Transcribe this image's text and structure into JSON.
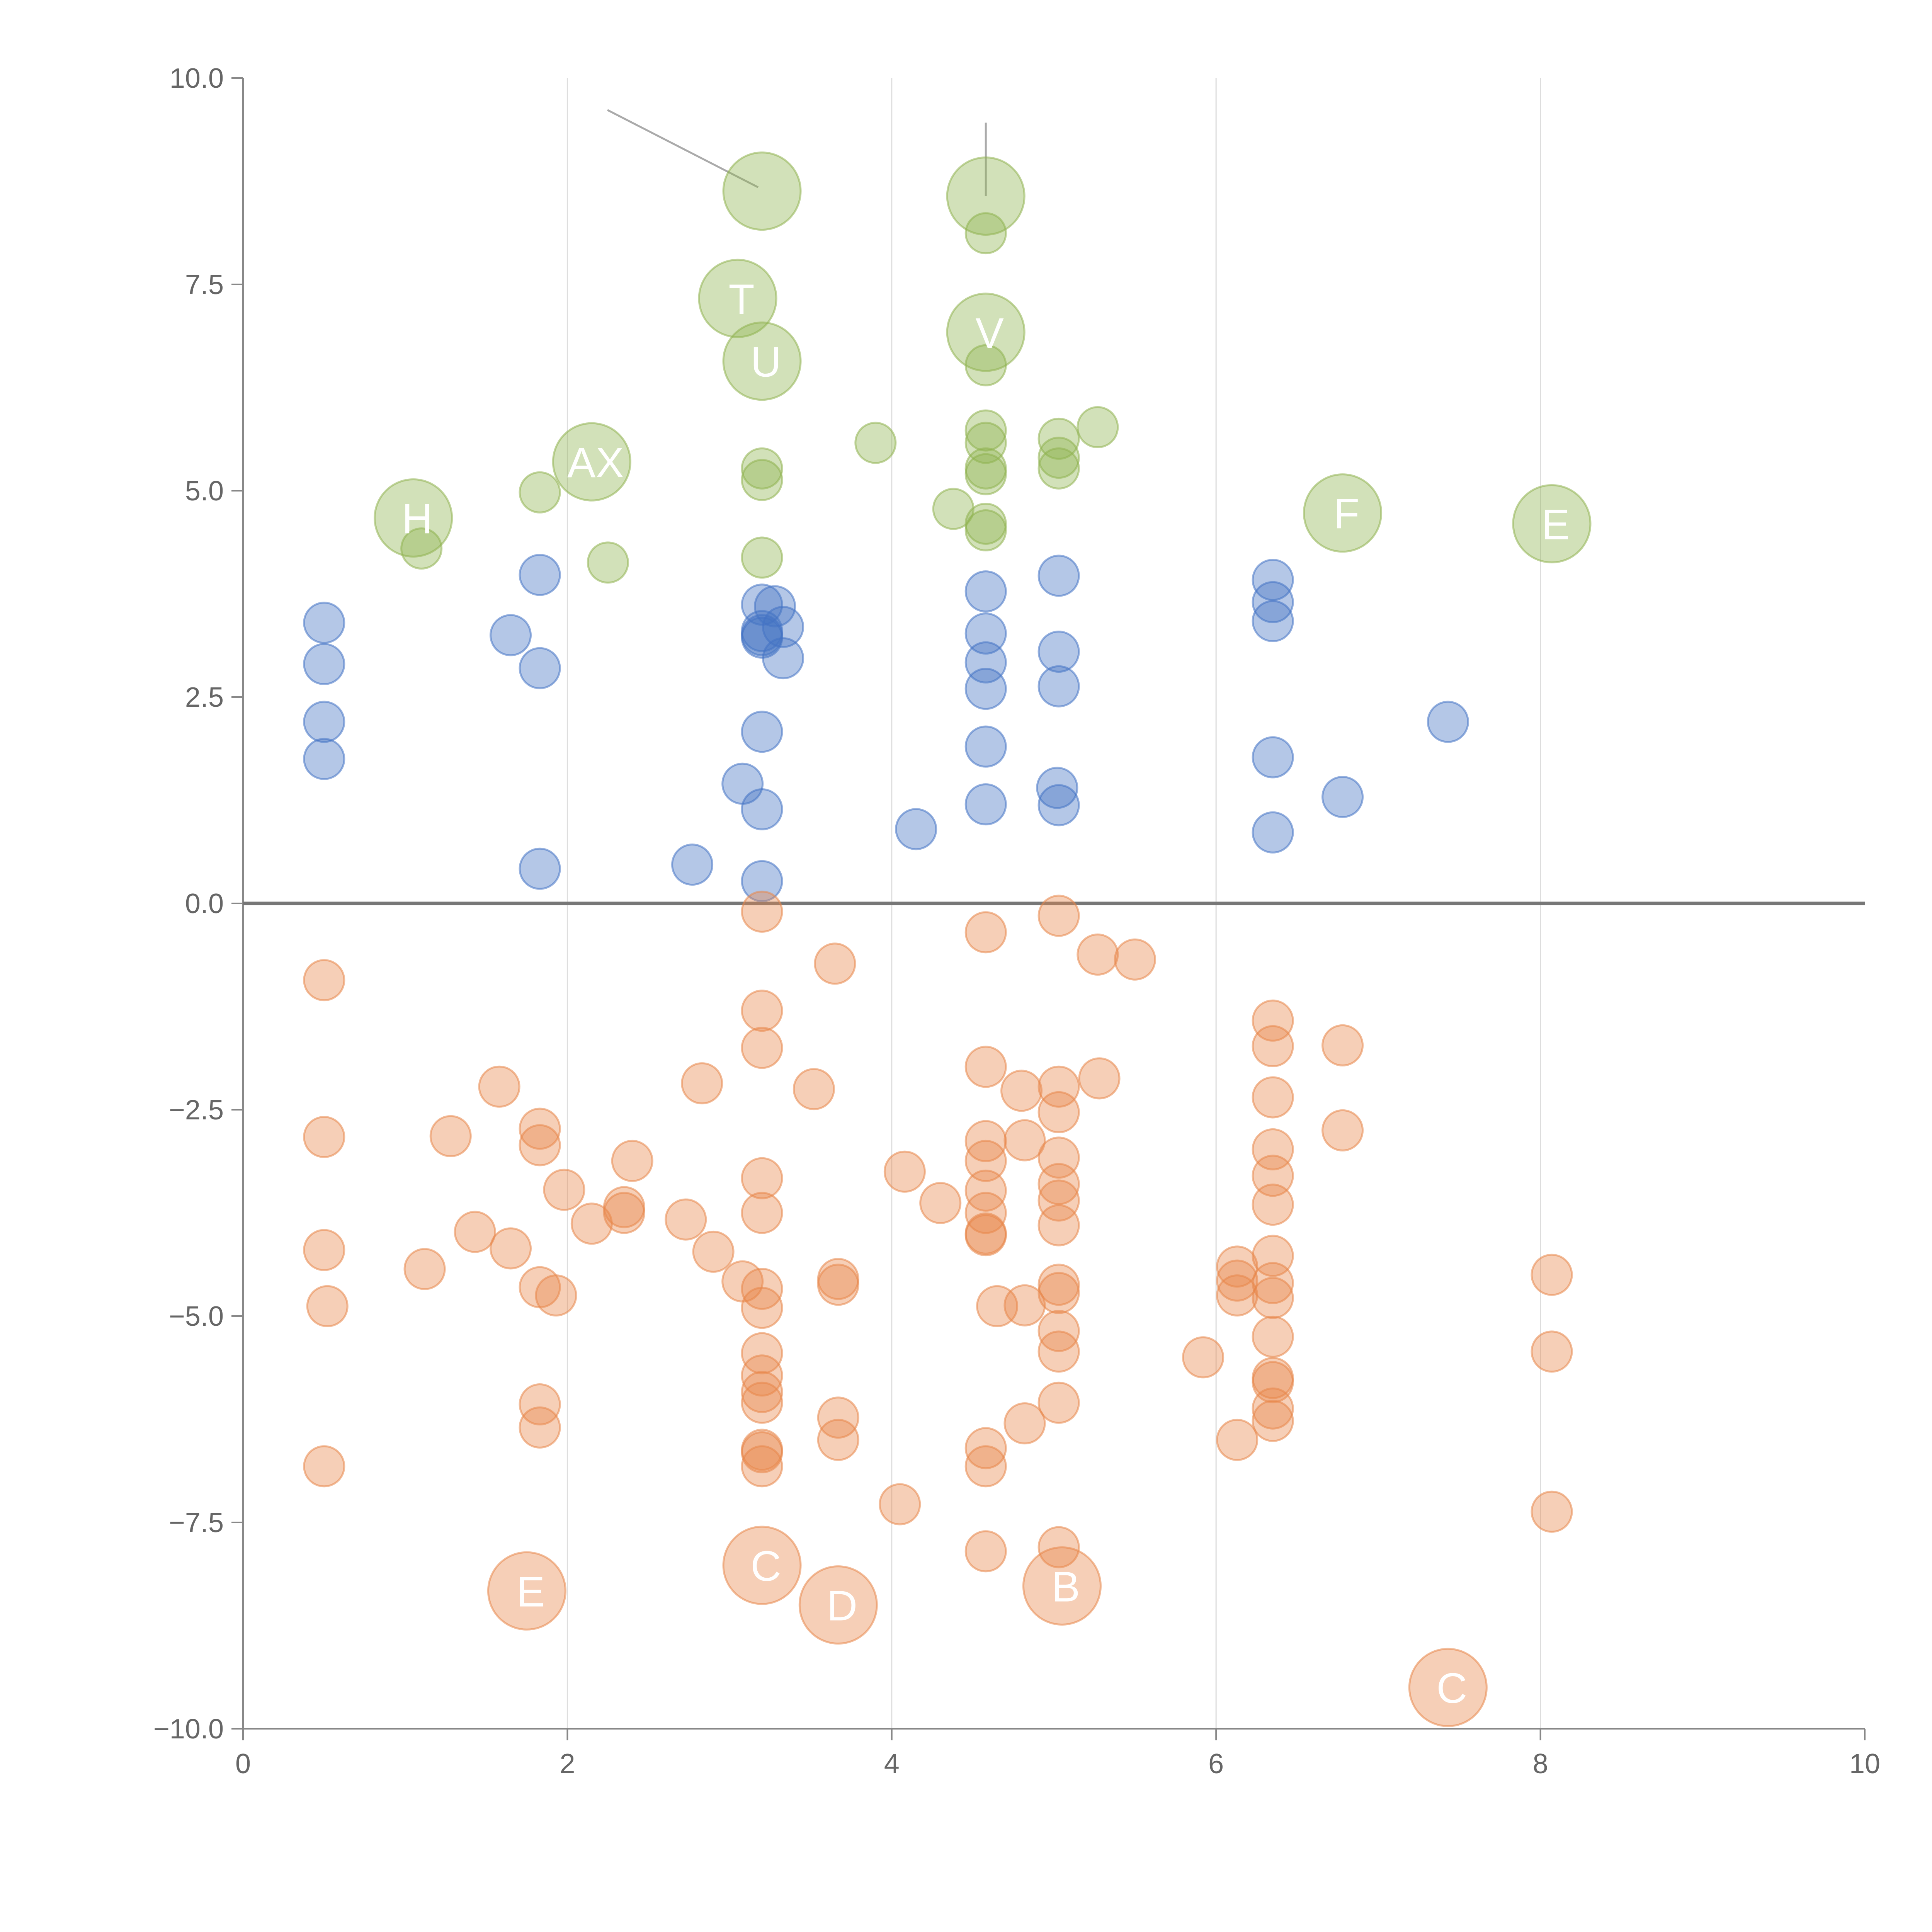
{
  "chart_data": {
    "type": "scatter",
    "title": "",
    "xlabel": "",
    "ylabel": "",
    "xlim": [
      0,
      10
    ],
    "ylim": [
      -10,
      10
    ],
    "x_ticks": [
      0,
      2,
      4,
      6,
      8,
      10
    ],
    "x_tick_labels": [
      "0",
      "2",
      "4",
      "6",
      "8",
      "10"
    ],
    "y_ticks": [
      10,
      7.5,
      5,
      2.5,
      0,
      -2.5,
      -5,
      -7.5,
      -10
    ],
    "y_tick_labels": [
      "10.0",
      "7.5",
      "5.0",
      "2.5",
      "0.0",
      "−2.5",
      "−5.0",
      "−7.5",
      "−10.0"
    ],
    "vertical_gridlines_at": [
      2,
      4,
      6,
      8
    ],
    "zero_line": 0,
    "series": [
      {
        "name": "blue",
        "color": "#4472c4",
        "points": [
          [
            0.5,
            3.4
          ],
          [
            0.5,
            2.9
          ],
          [
            0.5,
            2.2
          ],
          [
            0.5,
            1.75
          ],
          [
            1.65,
            3.25
          ],
          [
            1.83,
            3.98
          ],
          [
            1.83,
            2.85
          ],
          [
            1.83,
            0.42
          ],
          [
            2.77,
            0.47
          ],
          [
            3.08,
            1.45
          ],
          [
            3.2,
            3.62
          ],
          [
            3.2,
            3.3
          ],
          [
            3.2,
            3.25
          ],
          [
            3.2,
            3.22
          ],
          [
            3.2,
            2.08
          ],
          [
            3.2,
            1.14
          ],
          [
            3.2,
            0.27
          ],
          [
            3.28,
            3.6
          ],
          [
            3.33,
            3.35
          ],
          [
            3.33,
            2.97
          ],
          [
            4.15,
            0.9
          ],
          [
            4.58,
            3.78
          ],
          [
            4.58,
            3.27
          ],
          [
            4.58,
            2.92
          ],
          [
            4.58,
            2.6
          ],
          [
            4.58,
            1.9
          ],
          [
            4.58,
            1.2
          ],
          [
            5.02,
            1.4
          ],
          [
            5.03,
            3.97
          ],
          [
            5.03,
            3.05
          ],
          [
            5.03,
            2.63
          ],
          [
            5.03,
            1.19
          ],
          [
            6.35,
            3.92
          ],
          [
            6.35,
            3.65
          ],
          [
            6.35,
            3.42
          ],
          [
            6.35,
            1.77
          ],
          [
            6.35,
            0.86
          ],
          [
            6.78,
            1.29
          ],
          [
            7.43,
            2.2
          ]
        ]
      },
      {
        "name": "green",
        "color": "#8fb350",
        "points": [
          [
            1.1,
            4.3
          ],
          [
            1.83,
            4.98
          ],
          [
            2.25,
            4.13
          ],
          [
            3.2,
            5.27
          ],
          [
            3.2,
            5.13
          ],
          [
            3.2,
            4.19
          ],
          [
            3.9,
            5.58
          ],
          [
            4.38,
            4.78
          ],
          [
            4.58,
            8.12
          ],
          [
            4.58,
            6.52
          ],
          [
            4.58,
            5.73
          ],
          [
            4.58,
            5.58
          ],
          [
            4.58,
            5.27
          ],
          [
            4.58,
            5.2
          ],
          [
            4.58,
            4.6
          ],
          [
            4.58,
            4.52
          ],
          [
            5.03,
            5.63
          ],
          [
            5.03,
            5.4
          ],
          [
            5.03,
            5.27
          ],
          [
            5.27,
            5.77
          ]
        ]
      },
      {
        "name": "orange",
        "color": "#e8874a",
        "points": [
          [
            0.5,
            -0.93
          ],
          [
            0.5,
            -2.83
          ],
          [
            0.5,
            -4.2
          ],
          [
            0.5,
            -6.82
          ],
          [
            0.52,
            -4.88
          ],
          [
            1.12,
            -4.43
          ],
          [
            1.28,
            -2.82
          ],
          [
            1.43,
            -3.98
          ],
          [
            1.58,
            -2.22
          ],
          [
            1.65,
            -4.18
          ],
          [
            1.83,
            -2.73
          ],
          [
            1.83,
            -2.93
          ],
          [
            1.83,
            -4.65
          ],
          [
            1.83,
            -6.07
          ],
          [
            1.83,
            -6.35
          ],
          [
            1.93,
            -4.75
          ],
          [
            1.98,
            -3.47
          ],
          [
            2.15,
            -3.88
          ],
          [
            2.35,
            -3.68
          ],
          [
            2.35,
            -3.75
          ],
          [
            2.4,
            -3.12
          ],
          [
            2.73,
            -3.83
          ],
          [
            2.83,
            -2.18
          ],
          [
            2.9,
            -4.22
          ],
          [
            3.08,
            -4.58
          ],
          [
            3.2,
            -0.1
          ],
          [
            3.2,
            -1.3
          ],
          [
            3.2,
            -1.75
          ],
          [
            3.2,
            -3.33
          ],
          [
            3.2,
            -3.75
          ],
          [
            3.2,
            -4.67
          ],
          [
            3.2,
            -4.9
          ],
          [
            3.2,
            -5.45
          ],
          [
            3.2,
            -5.72
          ],
          [
            3.2,
            -5.92
          ],
          [
            3.2,
            -6.05
          ],
          [
            3.2,
            -6.62
          ],
          [
            3.2,
            -6.65
          ],
          [
            3.2,
            -6.82
          ],
          [
            3.52,
            -2.25
          ],
          [
            3.65,
            -0.73
          ],
          [
            3.67,
            -4.55
          ],
          [
            3.67,
            -4.62
          ],
          [
            3.67,
            -6.23
          ],
          [
            3.67,
            -6.5
          ],
          [
            4.05,
            -7.28
          ],
          [
            4.08,
            -3.25
          ],
          [
            4.3,
            -3.63
          ],
          [
            4.58,
            -0.35
          ],
          [
            4.58,
            -1.98
          ],
          [
            4.58,
            -2.88
          ],
          [
            4.58,
            -3.12
          ],
          [
            4.58,
            -3.48
          ],
          [
            4.58,
            -3.75
          ],
          [
            4.58,
            -4.0
          ],
          [
            4.58,
            -4.02
          ],
          [
            4.58,
            -6.6
          ],
          [
            4.58,
            -6.82
          ],
          [
            4.58,
            -7.85
          ],
          [
            4.65,
            -4.88
          ],
          [
            4.8,
            -2.27
          ],
          [
            4.82,
            -2.87
          ],
          [
            4.82,
            -4.87
          ],
          [
            4.82,
            -6.3
          ],
          [
            5.03,
            -0.15
          ],
          [
            5.03,
            -2.22
          ],
          [
            5.03,
            -2.53
          ],
          [
            5.03,
            -3.08
          ],
          [
            5.03,
            -3.4
          ],
          [
            5.03,
            -3.6
          ],
          [
            5.03,
            -3.9
          ],
          [
            5.03,
            -4.62
          ],
          [
            5.03,
            -4.72
          ],
          [
            5.03,
            -5.18
          ],
          [
            5.03,
            -5.43
          ],
          [
            5.03,
            -6.05
          ],
          [
            5.03,
            -7.8
          ],
          [
            5.27,
            -0.62
          ],
          [
            5.28,
            -2.12
          ],
          [
            5.5,
            -0.68
          ],
          [
            5.92,
            -5.5
          ],
          [
            6.13,
            -4.4
          ],
          [
            6.13,
            -4.57
          ],
          [
            6.13,
            -4.75
          ],
          [
            6.13,
            -6.5
          ],
          [
            6.35,
            -1.42
          ],
          [
            6.35,
            -1.73
          ],
          [
            6.35,
            -2.35
          ],
          [
            6.35,
            -2.98
          ],
          [
            6.35,
            -3.3
          ],
          [
            6.35,
            -3.65
          ],
          [
            6.35,
            -4.27
          ],
          [
            6.35,
            -4.6
          ],
          [
            6.35,
            -4.78
          ],
          [
            6.35,
            -5.25
          ],
          [
            6.35,
            -5.75
          ],
          [
            6.35,
            -5.8
          ],
          [
            6.35,
            -6.12
          ],
          [
            6.35,
            -6.27
          ],
          [
            6.78,
            -1.72
          ],
          [
            6.78,
            -2.75
          ],
          [
            8.07,
            -4.5
          ],
          [
            8.07,
            -5.43
          ],
          [
            8.07,
            -7.37
          ]
        ]
      }
    ],
    "labeled_points": [
      {
        "label": "T",
        "x": 3.05,
        "y": 7.33,
        "group": "green"
      },
      {
        "label": "U",
        "x": 3.2,
        "y": 6.57,
        "group": "green"
      },
      {
        "label": "V",
        "x": 4.58,
        "y": 6.92,
        "group": "green"
      },
      {
        "label": "AX",
        "x": 2.15,
        "y": 5.35,
        "group": "green"
      },
      {
        "label": "H",
        "x": 1.05,
        "y": 4.67,
        "group": "green"
      },
      {
        "label": "F",
        "x": 6.78,
        "y": 4.73,
        "group": "green"
      },
      {
        "label": "E",
        "x": 8.07,
        "y": 4.6,
        "group": "green"
      },
      {
        "label": "",
        "x": 3.2,
        "y": 8.63,
        "group": "green"
      },
      {
        "label": "",
        "x": 4.58,
        "y": 8.57,
        "group": "green"
      },
      {
        "label": "E",
        "x": 1.75,
        "y": -8.33,
        "group": "orange"
      },
      {
        "label": "C",
        "x": 3.2,
        "y": -8.02,
        "group": "orange"
      },
      {
        "label": "D",
        "x": 3.67,
        "y": -8.5,
        "group": "orange"
      },
      {
        "label": "B",
        "x": 5.05,
        "y": -8.27,
        "group": "orange"
      },
      {
        "label": "C",
        "x": 7.43,
        "y": -9.5,
        "group": "orange"
      }
    ]
  }
}
